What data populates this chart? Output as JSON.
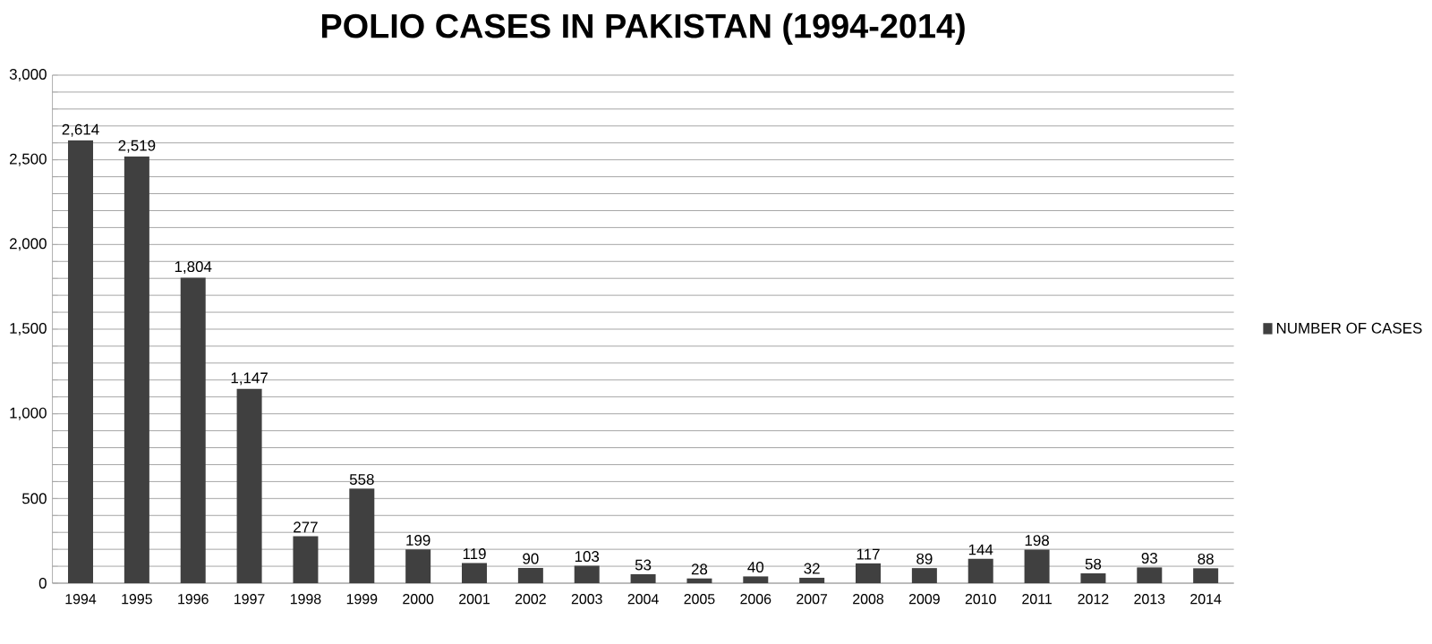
{
  "chart_data": {
    "type": "bar",
    "title": "POLIO CASES IN PAKISTAN (1994-2014)",
    "categories": [
      "1994",
      "1995",
      "1996",
      "1997",
      "1998",
      "1999",
      "2000",
      "2001",
      "2002",
      "2003",
      "2004",
      "2005",
      "2006",
      "2007",
      "2008",
      "2009",
      "2010",
      "2011",
      "2012",
      "2013",
      "2014"
    ],
    "series": [
      {
        "name": "NUMBER OF CASES",
        "color": "#404040",
        "values": [
          2614,
          2519,
          1804,
          1147,
          277,
          558,
          199,
          119,
          90,
          103,
          53,
          28,
          40,
          32,
          117,
          89,
          144,
          198,
          58,
          93,
          88
        ],
        "value_labels": [
          "2,614",
          "2,519",
          "1,804",
          "1,147",
          "277",
          "558",
          "199",
          "119",
          "90",
          "103",
          "53",
          "28",
          "40",
          "32",
          "117",
          "89",
          "144",
          "198",
          "58",
          "93",
          "88"
        ]
      }
    ],
    "ylim": [
      0,
      3000
    ],
    "yticks": [
      0,
      {
        "value": 100,
        "label": null
      },
      {
        "value": 200,
        "label": null
      },
      {
        "value": 300,
        "label": null
      },
      {
        "value": 400,
        "label": null
      },
      500,
      {
        "value": 600,
        "label": null
      },
      {
        "value": 700,
        "label": null
      },
      {
        "value": 800,
        "label": null
      },
      {
        "value": 900,
        "label": null
      },
      {
        "value": 1000,
        "label": "1,000"
      },
      {
        "value": 1100,
        "label": null
      },
      {
        "value": 1200,
        "label": null
      },
      {
        "value": 1300,
        "label": null
      },
      {
        "value": 1400,
        "label": null
      },
      {
        "value": 1500,
        "label": "1,500"
      },
      {
        "value": 1600,
        "label": null
      },
      {
        "value": 1700,
        "label": null
      },
      {
        "value": 1800,
        "label": null
      },
      {
        "value": 1900,
        "label": null
      },
      {
        "value": 2000,
        "label": "2,000"
      },
      {
        "value": 2100,
        "label": null
      },
      {
        "value": 2200,
        "label": null
      },
      {
        "value": 2300,
        "label": null
      },
      {
        "value": 2400,
        "label": null
      },
      {
        "value": 2500,
        "label": "2,500"
      },
      {
        "value": 2600,
        "label": null
      },
      {
        "value": 2700,
        "label": null
      },
      {
        "value": 2800,
        "label": null
      },
      {
        "value": 2900,
        "label": null
      },
      {
        "value": 3000,
        "label": "3,000"
      }
    ],
    "grid": "y",
    "legend": "right"
  }
}
